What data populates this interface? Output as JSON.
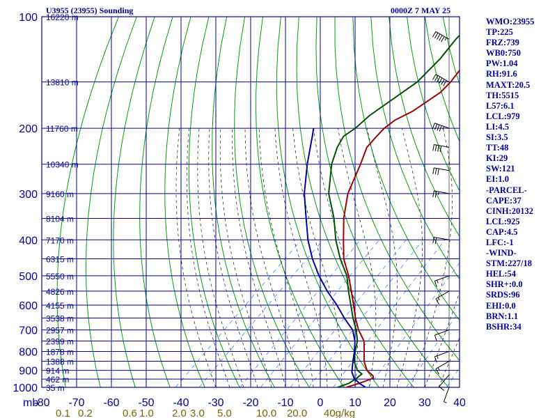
{
  "header": {
    "station_title": "U3955 (23955) Sounding",
    "time_title": "0000Z  7 MAY 25"
  },
  "chart_data": {
    "type": "line",
    "title": "U3955 (23955) Sounding",
    "pressure_axis": {
      "unit_label": "mb",
      "ticks": [
        100,
        200,
        300,
        400,
        500,
        600,
        700,
        800,
        900,
        1000
      ],
      "range": [
        100,
        1000
      ],
      "scale": "log"
    },
    "temperature_axis": {
      "ticks": [
        -80,
        -70,
        -60,
        -50,
        -40,
        -30,
        -20,
        -10,
        0,
        10,
        20,
        30,
        40
      ],
      "tick_labels": [
        "-80",
        "-70",
        "-60",
        "-50",
        "-40",
        "-30",
        "-20",
        "-10",
        "0",
        "10",
        "20",
        "30",
        "40"
      ],
      "range": [
        -80,
        40
      ]
    },
    "mixing_ratio_labels": [
      "0.1",
      "0.2",
      "0.6",
      "1.0",
      "2.0",
      "3.0",
      "5.0",
      "10.0",
      "20.0",
      "40g/kg"
    ],
    "height_labels": [
      {
        "p": 100,
        "text": "16220 m"
      },
      {
        "p": 150,
        "text": "13810 m"
      },
      {
        "p": 200,
        "text": "11760 m"
      },
      {
        "p": 250,
        "text": "10340 m"
      },
      {
        "p": 300,
        "text": "9160 m"
      },
      {
        "p": 350,
        "text": "8104 m"
      },
      {
        "p": 400,
        "text": "7170 m"
      },
      {
        "p": 450,
        "text": "6315 m"
      },
      {
        "p": 500,
        "text": "5550 m"
      },
      {
        "p": 550,
        "text": "4826 m"
      },
      {
        "p": 600,
        "text": "4155 m"
      },
      {
        "p": 650,
        "text": "3538 m"
      },
      {
        "p": 700,
        "text": "2957 m"
      },
      {
        "p": 750,
        "text": "2399 m"
      },
      {
        "p": 800,
        "text": "1878 m"
      },
      {
        "p": 850,
        "text": "1388 m"
      },
      {
        "p": 900,
        "text": "914 m"
      },
      {
        "p": 950,
        "text": "462 m"
      },
      {
        "p": 1000,
        "text": "35 m"
      }
    ],
    "series": [
      {
        "color": "#a00000",
        "points": [
          [
            1000,
            7.5
          ],
          [
            975,
            10
          ],
          [
            945,
            12.5
          ],
          [
            930,
            11.6
          ],
          [
            900,
            8.3
          ],
          [
            850,
            4.7
          ],
          [
            800,
            1.8
          ],
          [
            750,
            -1.4
          ],
          [
            700,
            -6.3
          ],
          [
            650,
            -10.8
          ],
          [
            600,
            -15.2
          ],
          [
            550,
            -20.1
          ],
          [
            500,
            -25.5
          ],
          [
            450,
            -32
          ],
          [
            400,
            -37.8
          ],
          [
            350,
            -44.2
          ],
          [
            300,
            -50.5
          ],
          [
            250,
            -55.7
          ],
          [
            225,
            -59
          ],
          [
            210,
            -59.5
          ],
          [
            200,
            -59.7
          ],
          [
            190,
            -59.1
          ],
          [
            180,
            -56.7
          ],
          [
            160,
            -54.4
          ],
          [
            150,
            -54.6
          ],
          [
            140,
            -55.5
          ],
          [
            125,
            -56.9
          ],
          [
            115,
            -56.9
          ],
          [
            100,
            -56
          ]
        ]
      },
      {
        "color": "#005000",
        "points": [
          [
            1000,
            5
          ],
          [
            975,
            7
          ],
          [
            945,
            7.7
          ],
          [
            920,
            7.9
          ],
          [
            900,
            5.6
          ],
          [
            850,
            1.8
          ],
          [
            800,
            -0.8
          ],
          [
            750,
            -3.3
          ],
          [
            700,
            -7
          ],
          [
            650,
            -11.5
          ],
          [
            600,
            -16
          ],
          [
            550,
            -20.9
          ],
          [
            500,
            -26
          ],
          [
            450,
            -33
          ],
          [
            400,
            -40
          ],
          [
            350,
            -47
          ],
          [
            300,
            -56
          ],
          [
            250,
            -64
          ],
          [
            225,
            -67.5
          ],
          [
            210,
            -69
          ],
          [
            200,
            -68
          ],
          [
            185,
            -67.8
          ],
          [
            150,
            -64.2
          ],
          [
            130,
            -64.6
          ],
          [
            115,
            -66
          ],
          [
            100,
            -66.5
          ]
        ]
      },
      {
        "color": "#0000a0",
        "points": [
          [
            1000,
            13
          ],
          [
            975,
            10
          ],
          [
            945,
            7
          ],
          [
            910,
            4.5
          ],
          [
            850,
            1.5
          ],
          [
            800,
            -1
          ],
          [
            750,
            -4
          ],
          [
            700,
            -8
          ],
          [
            650,
            -14
          ],
          [
            600,
            -20
          ],
          [
            550,
            -27
          ],
          [
            500,
            -34
          ],
          [
            450,
            -41
          ],
          [
            400,
            -48
          ],
          [
            350,
            -55
          ],
          [
            300,
            -63
          ],
          [
            250,
            -71
          ],
          [
            210,
            -78
          ],
          [
            200,
            -80
          ]
        ]
      }
    ],
    "wind_barbs": [
      {
        "p": 115,
        "dir": 300,
        "spd": 55
      },
      {
        "p": 150,
        "dir": 300,
        "spd": 60
      },
      {
        "p": 200,
        "dir": 290,
        "spd": 45
      },
      {
        "p": 225,
        "dir": 280,
        "spd": 40
      },
      {
        "p": 260,
        "dir": 280,
        "spd": 30
      },
      {
        "p": 300,
        "dir": 280,
        "spd": 25
      },
      {
        "p": 400,
        "dir": 280,
        "spd": 20
      },
      {
        "p": 500,
        "dir": 250,
        "spd": 15
      },
      {
        "p": 550,
        "dir": 240,
        "spd": 15
      },
      {
        "p": 700,
        "dir": 250,
        "spd": 10
      },
      {
        "p": 800,
        "dir": 250,
        "spd": 15
      },
      {
        "p": 850,
        "dir": 240,
        "spd": 15
      },
      {
        "p": 925,
        "dir": 220,
        "spd": 10
      },
      {
        "p": 1000,
        "dir": 200,
        "spd": 5
      }
    ]
  },
  "indices": [
    "WMO:23955",
    "TP:225",
    "FRZ:739",
    "WB0:750",
    "PW:1.04",
    "RH:91.6",
    "MAXT:20.5",
    "TH:5515",
    "L57:6.1",
    "LCL:979",
    "LI:4.5",
    "SI:3.5",
    "TT:48",
    "KI:29",
    "SW:121",
    "EI:1.0",
    "-PARCEL-",
    "CAPE:37",
    "CINH:20132",
    "LCL:925",
    "CAP:4.5",
    "LFC:-1",
    "-WIND-",
    "STM:227/18",
    "HEL:54",
    "SHR+:0.0",
    "SRDS:96",
    "EHI:0.0",
    "BRN:1.1",
    "BSHR:34"
  ],
  "colors": {
    "frame": "#0000a0",
    "dry_adiabat": "#00a000",
    "moist_adiabat": "#303030",
    "mixing_ratio": "#4080ff",
    "mixing_label": "#806000"
  }
}
